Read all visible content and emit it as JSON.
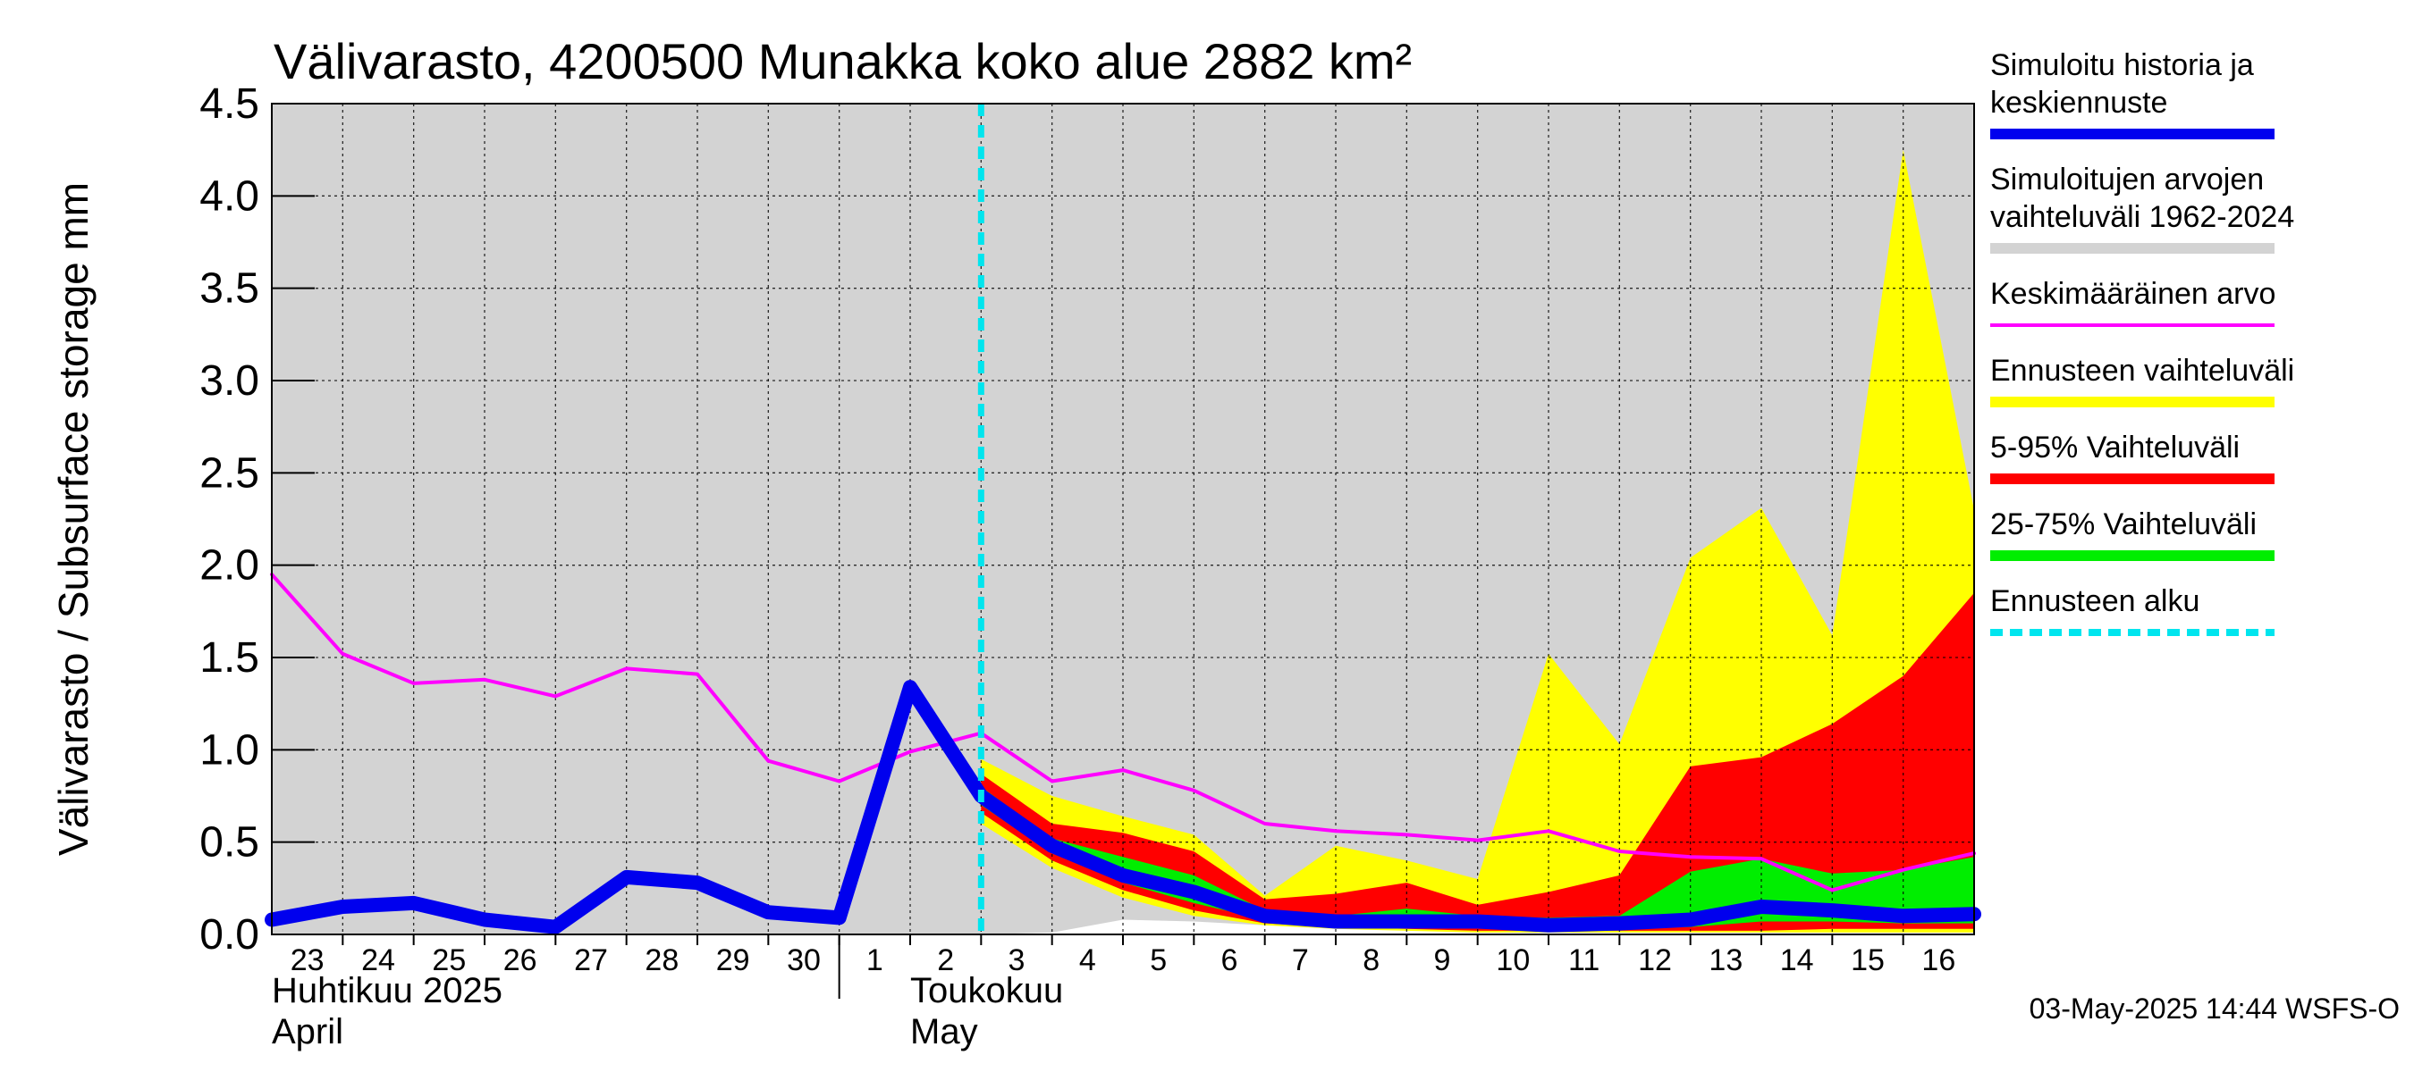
{
  "chart_data": {
    "type": "area",
    "title": "Välivarasto, 4200500 Munakka koko alue 2882 km²",
    "ylabel": "Välivarasto / Subsurface storage  mm",
    "ylim": [
      0,
      4.5
    ],
    "yticks": [
      "0.0",
      "0.5",
      "1.0",
      "1.5",
      "2.0",
      "2.5",
      "3.0",
      "3.5",
      "4.0",
      "4.5"
    ],
    "x_ticks": [
      "23",
      "24",
      "25",
      "26",
      "27",
      "28",
      "29",
      "30",
      "1",
      "2",
      "3",
      "4",
      "5",
      "6",
      "7",
      "8",
      "9",
      "10",
      "11",
      "12",
      "13",
      "14",
      "15",
      "16"
    ],
    "x_months": [
      {
        "fi": "Huhtikuu  2025",
        "en": "April"
      },
      {
        "fi": "Toukokuu",
        "en": "May"
      }
    ],
    "forecast_start": 10,
    "grid": true,
    "colors": {
      "history": "#0000ee",
      "range": "#d3d3d3",
      "mean": "#ff00ff",
      "forecast_range": "#ffff00",
      "p5_95": "#ff0000",
      "p25_75": "#00ee00",
      "forecast_start": "#00e5ee"
    },
    "series": [
      {
        "name": "Simuloitu historia ja keskiennuste",
        "x": [
          0,
          1,
          2,
          3,
          4,
          5,
          6,
          7,
          8,
          9,
          10,
          11,
          12,
          13,
          14,
          15,
          16,
          17,
          18,
          19,
          20,
          21,
          22,
          23,
          24
        ],
        "values": [
          0.08,
          0.15,
          0.17,
          0.08,
          0.04,
          0.31,
          0.28,
          0.12,
          0.09,
          1.34,
          0.75,
          0.48,
          0.32,
          0.23,
          0.1,
          0.07,
          0.07,
          0.07,
          0.05,
          0.06,
          0.08,
          0.15,
          0.13,
          0.1,
          0.11
        ]
      },
      {
        "name": "Keskimääräinen arvo",
        "x": [
          0,
          1,
          2,
          3,
          4,
          5,
          6,
          7,
          8,
          9,
          10,
          11,
          12,
          13,
          14,
          15,
          16,
          17,
          18,
          19,
          20,
          21,
          22,
          23,
          24
        ],
        "values": [
          1.95,
          1.52,
          1.36,
          1.38,
          1.29,
          1.44,
          1.41,
          0.94,
          0.83,
          0.99,
          1.09,
          0.83,
          0.89,
          0.78,
          0.6,
          0.56,
          0.54,
          0.51,
          0.56,
          0.45,
          0.42,
          0.41,
          0.24,
          0.35,
          0.44
        ]
      },
      {
        "name": "Simuloitujen arvojen vaihteluväli 1962-2024",
        "x": [
          0,
          9,
          10,
          11,
          12,
          13,
          14,
          15,
          16,
          17,
          18,
          19,
          20,
          21,
          22,
          23,
          24
        ],
        "upper": [
          4.5,
          4.5,
          4.5,
          4.5,
          4.5,
          4.5,
          4.5,
          4.5,
          4.5,
          4.5,
          4.5,
          4.5,
          4.5,
          4.5,
          4.5,
          4.5,
          4.5
        ],
        "lower": [
          0,
          0,
          0,
          0.01,
          0.08,
          0.07,
          0.05,
          0.04,
          0.03,
          0.03,
          0.02,
          0.02,
          0.02,
          0.02,
          0.02,
          0.02,
          0.02
        ]
      },
      {
        "name": "Ennusteen vaihteluväli",
        "x": [
          10,
          11,
          12,
          13,
          14,
          15,
          16,
          17,
          18,
          19,
          20,
          21,
          22,
          23,
          24
        ],
        "upper": [
          0.95,
          0.75,
          0.64,
          0.54,
          0.21,
          0.48,
          0.4,
          0.3,
          1.52,
          1.03,
          2.04,
          2.31,
          1.62,
          4.25,
          2.3
        ],
        "lower": [
          0.6,
          0.36,
          0.2,
          0.1,
          0.05,
          0.03,
          0.02,
          0.01,
          0.01,
          0.01,
          0.01,
          0.01,
          0.01,
          0.01,
          0.01
        ]
      },
      {
        "name": "5-95% Vaihteluväli",
        "x": [
          10,
          11,
          12,
          13,
          14,
          15,
          16,
          17,
          18,
          19,
          20,
          21,
          22,
          23,
          24
        ],
        "upper": [
          0.87,
          0.6,
          0.55,
          0.45,
          0.19,
          0.22,
          0.28,
          0.16,
          0.23,
          0.32,
          0.91,
          0.96,
          1.14,
          1.4,
          1.85
        ],
        "lower": [
          0.66,
          0.4,
          0.24,
          0.13,
          0.06,
          0.04,
          0.03,
          0.02,
          0.02,
          0.02,
          0.02,
          0.02,
          0.03,
          0.03,
          0.03
        ]
      },
      {
        "name": "25-75% Vaihteluväli",
        "x": [
          10,
          11,
          12,
          13,
          14,
          15,
          16,
          17,
          18,
          19,
          20,
          21,
          22,
          23,
          24
        ],
        "upper": [
          0.8,
          0.52,
          0.42,
          0.32,
          0.13,
          0.1,
          0.14,
          0.1,
          0.09,
          0.1,
          0.34,
          0.41,
          0.33,
          0.35,
          0.42
        ],
        "lower": [
          0.7,
          0.44,
          0.28,
          0.17,
          0.08,
          0.06,
          0.05,
          0.04,
          0.03,
          0.03,
          0.04,
          0.07,
          0.07,
          0.06,
          0.06
        ]
      }
    ],
    "legend": [
      {
        "label": "Simuloitu historia ja keskiennuste",
        "lines": [
          "Simuloitu historia ja",
          "keskiennuste"
        ],
        "color": "#0000ee",
        "style": "thick"
      },
      {
        "label": "Simuloitujen arvojen vaihteluväli 1962-2024",
        "lines": [
          "Simuloitujen arvojen",
          "vaihteluväli 1962-2024"
        ],
        "color": "#d3d3d3",
        "style": "thick"
      },
      {
        "label": "Keskimääräinen arvo",
        "lines": [
          "Keskimääräinen arvo"
        ],
        "color": "#ff00ff",
        "style": "thin"
      },
      {
        "label": "Ennusteen vaihteluväli",
        "lines": [
          "Ennusteen vaihteluväli"
        ],
        "color": "#ffff00",
        "style": "thick"
      },
      {
        "label": "5-95% Vaihteluväli",
        "lines": [
          "5-95% Vaihteluväli"
        ],
        "color": "#ff0000",
        "style": "thick"
      },
      {
        "label": "25-75% Vaihteluväli",
        "lines": [
          "25-75% Vaihteluväli"
        ],
        "color": "#00ee00",
        "style": "thick"
      },
      {
        "label": "Ennusteen alku",
        "lines": [
          "Ennusteen alku"
        ],
        "color": "#00e5ee",
        "style": "dashed"
      }
    ],
    "legend_position": "right",
    "footer": "03-May-2025 14:44 WSFS-O"
  }
}
